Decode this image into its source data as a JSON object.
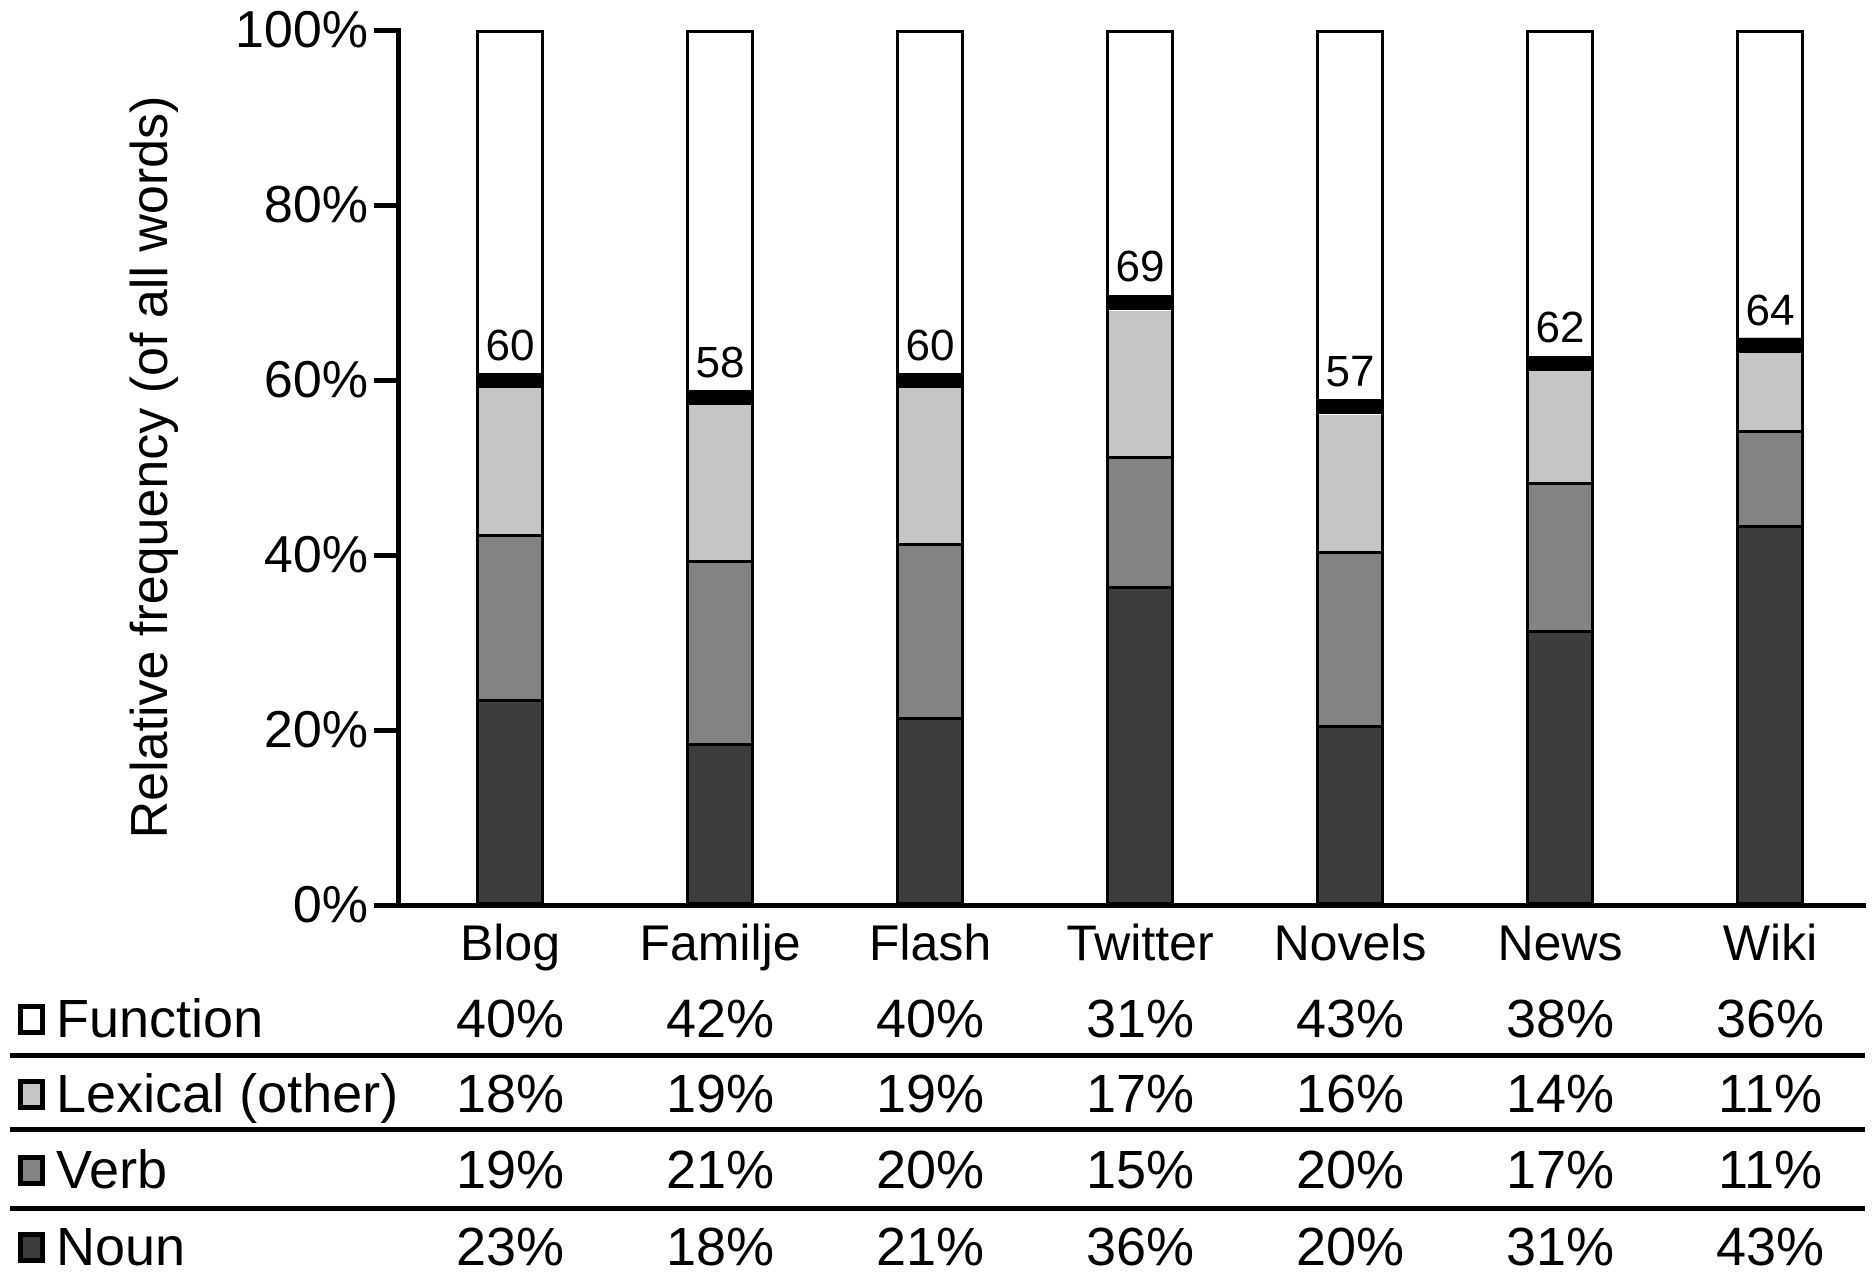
{
  "chart_data": {
    "type": "bar",
    "stacked": true,
    "title": "",
    "ylabel": "Relative frequency (of all words)",
    "xlabel": "",
    "ylim": [
      0,
      100
    ],
    "grid": false,
    "y_ticks": {
      "values": [
        0,
        20,
        40,
        60,
        80,
        100
      ],
      "labels": [
        "0%",
        "20%",
        "40%",
        "60%",
        "80%",
        "100%"
      ]
    },
    "categories": [
      "Blog",
      "Familje",
      "Flash",
      "Twitter",
      "Novels",
      "News",
      "Wiki"
    ],
    "series": [
      {
        "name": "Noun",
        "color": "#3d3d3d",
        "values": [
          23,
          18,
          21,
          36,
          20,
          31,
          43
        ]
      },
      {
        "name": "Verb",
        "color": "#838383",
        "values": [
          19,
          21,
          20,
          15,
          20,
          17,
          11
        ]
      },
      {
        "name": "Lexical (other)",
        "color": "#c5c5c5",
        "values": [
          18,
          19,
          19,
          17,
          16,
          14,
          11
        ]
      },
      {
        "name": "Function",
        "color": "#ffffff",
        "values": [
          40,
          42,
          40,
          31,
          43,
          38,
          36
        ]
      }
    ],
    "content_word_totals": {
      "values": [
        60,
        58,
        60,
        69,
        57,
        62,
        64
      ],
      "marker_color": "#000000"
    },
    "legend_position": "table rows below chart, left side"
  },
  "legend_table": {
    "rows": [
      {
        "label": "Function",
        "swatch_color": "#ffffff",
        "values": [
          "40%",
          "42%",
          "40%",
          "31%",
          "43%",
          "38%",
          "36%"
        ]
      },
      {
        "label": "Lexical (other)",
        "swatch_color": "#c5c5c5",
        "values": [
          "18%",
          "19%",
          "19%",
          "17%",
          "16%",
          "14%",
          "11%"
        ]
      },
      {
        "label": "Verb",
        "swatch_color": "#838383",
        "values": [
          "19%",
          "21%",
          "20%",
          "15%",
          "20%",
          "17%",
          "11%"
        ]
      },
      {
        "label": "Noun",
        "swatch_color": "#3d3d3d",
        "values": [
          "23%",
          "18%",
          "21%",
          "36%",
          "20%",
          "31%",
          "43%"
        ]
      }
    ]
  }
}
